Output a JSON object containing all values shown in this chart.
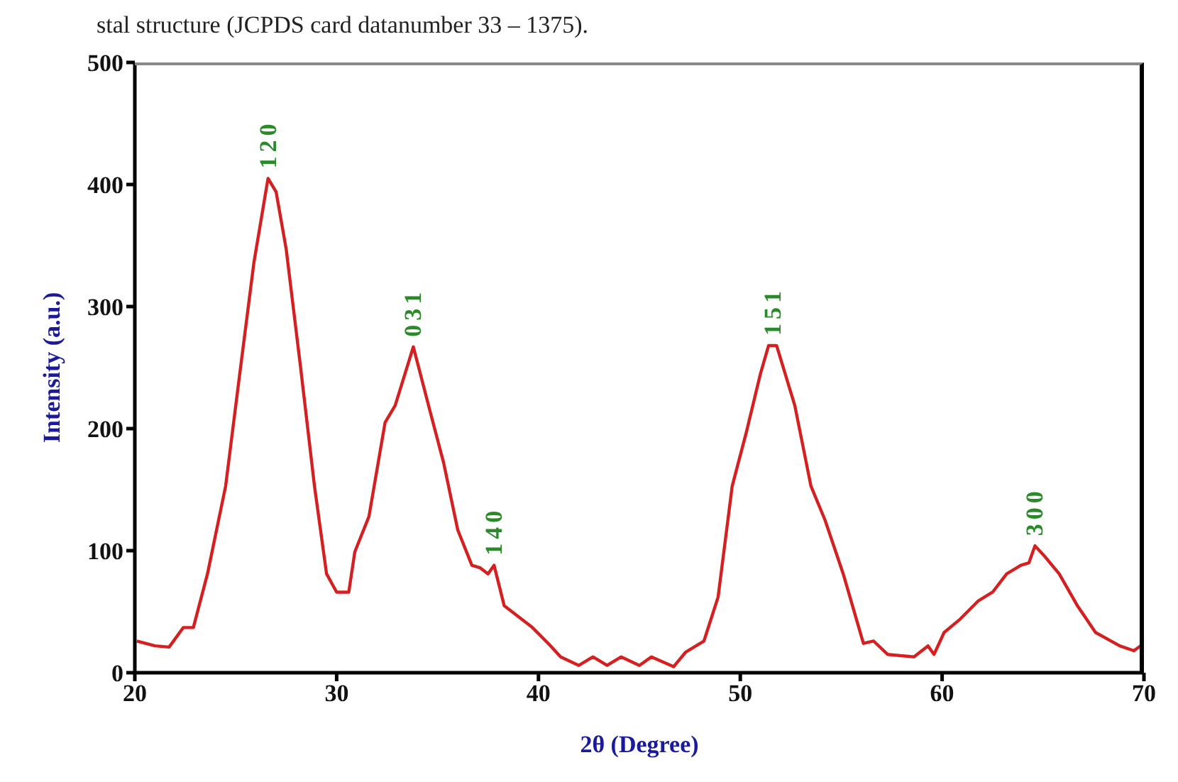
{
  "chart_data": {
    "type": "line",
    "xlabel": "2θ (Degree)",
    "ylabel": "Intensity (a.u.)",
    "x": [
      20.1,
      21.0,
      21.7,
      22.4,
      22.9,
      23.6,
      24.5,
      25.2,
      25.9,
      26.6,
      27.0,
      27.5,
      28.2,
      28.9,
      29.5,
      30.0,
      30.6,
      30.9,
      31.6,
      32.4,
      32.9,
      33.8,
      34.6,
      35.3,
      36.0,
      36.7,
      37.1,
      37.5,
      37.8,
      38.3,
      39.7,
      40.6,
      41.1,
      42.0,
      42.7,
      43.4,
      44.1,
      45.0,
      45.6,
      46.7,
      47.3,
      48.2,
      48.9,
      49.6,
      50.3,
      51.0,
      51.4,
      51.8,
      52.7,
      53.5,
      54.2,
      55.1,
      56.1,
      56.6,
      57.3,
      58.6,
      59.3,
      59.6,
      60.1,
      60.9,
      61.8,
      62.5,
      63.2,
      63.9,
      64.3,
      64.6,
      65.1,
      65.8,
      66.7,
      67.6,
      68.8,
      69.5,
      70.0
    ],
    "series": [
      {
        "color": "#d42020",
        "values": [
          26,
          22,
          21,
          37,
          37,
          81,
          153,
          245,
          336,
          405,
          394,
          347,
          252,
          153,
          81,
          66,
          66,
          99,
          128,
          205,
          219,
          267,
          216,
          172,
          117,
          88,
          86,
          81,
          88,
          55,
          37,
          22,
          13,
          6,
          13,
          6,
          13,
          6,
          13,
          5,
          17,
          26,
          62,
          153,
          197,
          245,
          268,
          268,
          219,
          153,
          125,
          81,
          24,
          26,
          15,
          13,
          22,
          15,
          33,
          44,
          59,
          66,
          81,
          88,
          90,
          104,
          95,
          81,
          55,
          33,
          22,
          18,
          24
        ]
      }
    ],
    "xlim": [
      20,
      70
    ],
    "xticks": [
      20,
      30,
      40,
      50,
      60,
      70
    ],
    "ylim": [
      0,
      500
    ],
    "yticks": [
      0,
      100,
      200,
      300,
      400,
      500
    ],
    "grid": false,
    "legend": false,
    "marker": "none",
    "line_style": "solid",
    "annotations": [
      "stal structure (JCPDS card datanumber 33 – 1375).",
      {
        "text": "120",
        "x": 26.6,
        "y": 405
      },
      {
        "text": "031",
        "x": 33.8,
        "y": 267
      },
      {
        "text": "140",
        "x": 37.8,
        "y": 88
      },
      {
        "text": "151",
        "x": 51.6,
        "y": 268
      },
      {
        "text": "300",
        "x": 64.6,
        "y": 104
      }
    ]
  }
}
